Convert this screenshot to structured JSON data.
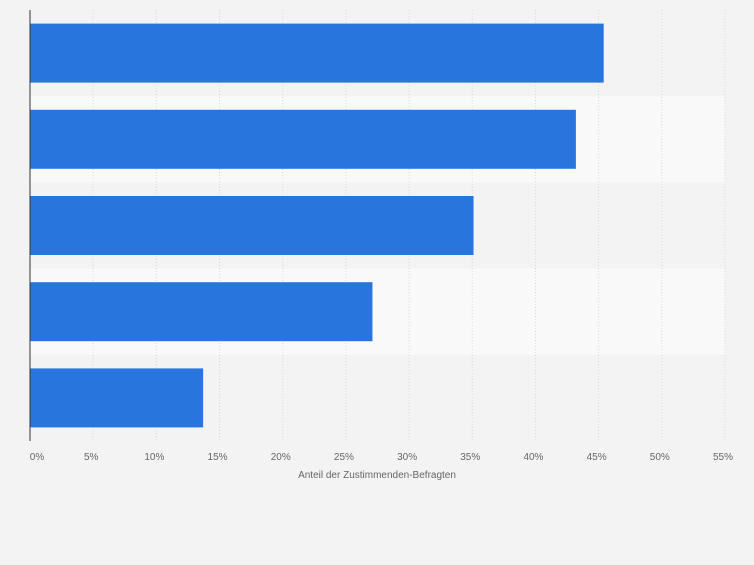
{
  "chart_data": {
    "type": "bar",
    "orientation": "horizontal",
    "categories": [
      "",
      "",
      "",
      "",
      ""
    ],
    "values": [
      45.4,
      43.2,
      35.1,
      27.1,
      13.7
    ],
    "xlabel": "Anteil der Zustimmenden-Befragten",
    "ylabel": "",
    "xlim": [
      0,
      55
    ],
    "ticks": [
      "0%",
      "5%",
      "10%",
      "15%",
      "20%",
      "25%",
      "30%",
      "35%",
      "40%",
      "45%",
      "50%",
      "55%"
    ],
    "grid": true,
    "legend": "none",
    "colors": {
      "bar": "#2876dd",
      "band_dark": "#f3f3f3",
      "band_light": "#f9f9f9",
      "grid": "#d9d9d9",
      "axis": "#333333",
      "tick_text": "#666666"
    }
  }
}
